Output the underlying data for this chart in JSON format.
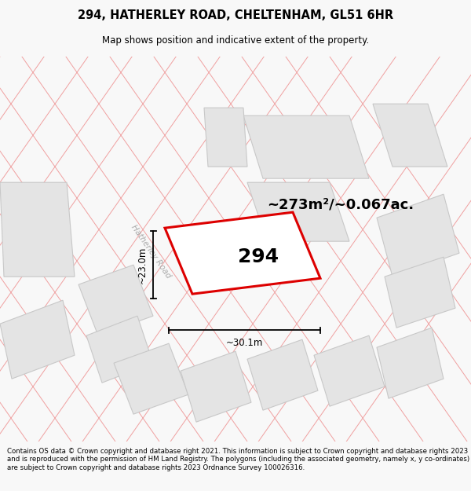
{
  "title": "294, HATHERLEY ROAD, CHELTENHAM, GL51 6HR",
  "subtitle": "Map shows position and indicative extent of the property.",
  "footer": "Contains OS data © Crown copyright and database right 2021. This information is subject to Crown copyright and database rights 2023 and is reproduced with the permission of HM Land Registry. The polygons (including the associated geometry, namely x, y co-ordinates) are subject to Crown copyright and database rights 2023 Ordnance Survey 100026316.",
  "area_label": "~273m²/~0.067ac.",
  "property_number": "294",
  "dim_width": "~30.1m",
  "dim_height": "~23.0m",
  "road_label": "Hatherley Road",
  "bg_color": "#f8f8f8",
  "map_bg": "#ffffff",
  "plot_outline_color": "#dd0000",
  "building_fill": "#e4e4e4",
  "building_stroke": "#c8c8c8",
  "road_line_color": "#f0a0a0",
  "title_fontsize": 10.5,
  "subtitle_fontsize": 8.5,
  "footer_fontsize": 6.2
}
